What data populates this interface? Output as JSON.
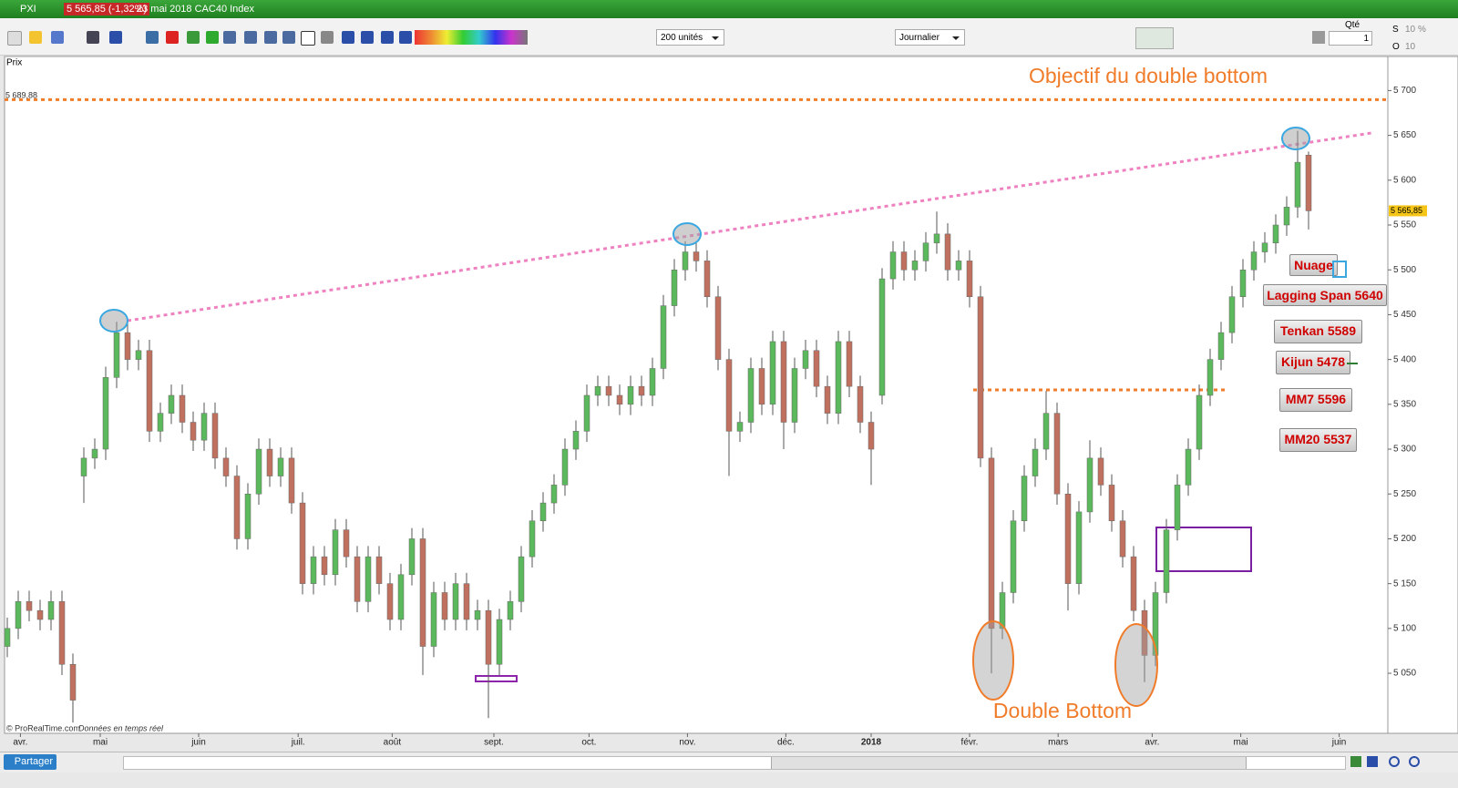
{
  "window": {
    "symbol": "PXI",
    "quote": "5 565,85 (-1,32%)",
    "description": "23 mai 2018 CAC40 Index"
  },
  "toolbar": {
    "units": "200 unités",
    "period": "Journalier",
    "qty_label": "Qté",
    "qty": "1",
    "s_label": "S",
    "s_value": "10",
    "percent": "%",
    "o_label": "O",
    "o_value": "10"
  },
  "panel_label": "Prix",
  "chart_data": {
    "type": "candlestick",
    "up_color": "#5cb85c",
    "down_color": "#c0705f",
    "xlim": [
      -0.25,
      126.25
    ],
    "ylim": [
      4983,
      5738
    ],
    "xticks": [
      {
        "value": 1.2,
        "label": "avr."
      },
      {
        "value": 8.5,
        "label": "mai"
      },
      {
        "value": 17.5,
        "label": "juin"
      },
      {
        "value": 26.6,
        "label": "juil."
      },
      {
        "value": 35.2,
        "label": "août"
      },
      {
        "value": 44.5,
        "label": "sept."
      },
      {
        "value": 53.2,
        "label": "oct."
      },
      {
        "value": 62.2,
        "label": "nov."
      },
      {
        "value": 71.2,
        "label": "déc."
      },
      {
        "value": 79,
        "label": "2018"
      },
      {
        "value": 88,
        "label": "févr."
      },
      {
        "value": 96.1,
        "label": "mars"
      },
      {
        "value": 104.7,
        "label": "avr."
      },
      {
        "value": 112.8,
        "label": "mai"
      },
      {
        "value": 121.8,
        "label": "juin"
      }
    ],
    "yticks": [
      {
        "value": 5050,
        "label": "5 050"
      },
      {
        "value": 5100,
        "label": "5 100"
      },
      {
        "value": 5150,
        "label": "5 150"
      },
      {
        "value": 5200,
        "label": "5 200"
      },
      {
        "value": 5250,
        "label": "5 250"
      },
      {
        "value": 5300,
        "label": "5 300"
      },
      {
        "value": 5350,
        "label": "5 350"
      },
      {
        "value": 5400,
        "label": "5 400"
      },
      {
        "value": 5450,
        "label": "5 450"
      },
      {
        "value": 5500,
        "label": "5 500"
      },
      {
        "value": 5550,
        "label": "5 550"
      },
      {
        "value": 5600,
        "label": "5 600"
      },
      {
        "value": 5650,
        "label": "5 650"
      },
      {
        "value": 5700,
        "label": "5 700"
      }
    ],
    "last_price": {
      "value": 5565.85,
      "label": "5 565,85"
    },
    "objective_level": {
      "value": 5689.88,
      "label": "5 689,88",
      "color": "#f07c2a"
    },
    "ohlc": [
      [
        5080,
        5112,
        5068,
        5100
      ],
      [
        5100,
        5142,
        5088,
        5130
      ],
      [
        5130,
        5142,
        5108,
        5120
      ],
      [
        5120,
        5132,
        5098,
        5110
      ],
      [
        5110,
        5142,
        5098,
        5130
      ],
      [
        5130,
        5142,
        5048,
        5060
      ],
      [
        5060,
        5072,
        4995,
        5020
      ],
      [
        5270,
        5302,
        5240,
        5290
      ],
      [
        5290,
        5312,
        5278,
        5300
      ],
      [
        5300,
        5392,
        5288,
        5380
      ],
      [
        5380,
        5442,
        5368,
        5430
      ],
      [
        5430,
        5442,
        5388,
        5400
      ],
      [
        5400,
        5422,
        5388,
        5410
      ],
      [
        5410,
        5422,
        5308,
        5320
      ],
      [
        5320,
        5352,
        5308,
        5340
      ],
      [
        5340,
        5372,
        5328,
        5360
      ],
      [
        5360,
        5372,
        5318,
        5330
      ],
      [
        5330,
        5342,
        5298,
        5310
      ],
      [
        5310,
        5352,
        5298,
        5340
      ],
      [
        5340,
        5352,
        5278,
        5290
      ],
      [
        5290,
        5302,
        5258,
        5270
      ],
      [
        5270,
        5282,
        5188,
        5200
      ],
      [
        5200,
        5262,
        5188,
        5250
      ],
      [
        5250,
        5312,
        5238,
        5300
      ],
      [
        5300,
        5312,
        5258,
        5270
      ],
      [
        5270,
        5302,
        5258,
        5290
      ],
      [
        5290,
        5302,
        5228,
        5240
      ],
      [
        5240,
        5252,
        5138,
        5150
      ],
      [
        5150,
        5192,
        5138,
        5180
      ],
      [
        5180,
        5192,
        5148,
        5160
      ],
      [
        5160,
        5222,
        5148,
        5210
      ],
      [
        5210,
        5222,
        5168,
        5180
      ],
      [
        5180,
        5192,
        5118,
        5130
      ],
      [
        5130,
        5192,
        5118,
        5180
      ],
      [
        5180,
        5192,
        5138,
        5150
      ],
      [
        5150,
        5162,
        5098,
        5110
      ],
      [
        5110,
        5172,
        5098,
        5160
      ],
      [
        5160,
        5212,
        5148,
        5200
      ],
      [
        5200,
        5212,
        5048,
        5080
      ],
      [
        5080,
        5152,
        5068,
        5140
      ],
      [
        5140,
        5152,
        5098,
        5110
      ],
      [
        5110,
        5162,
        5098,
        5150
      ],
      [
        5150,
        5162,
        5098,
        5110
      ],
      [
        5110,
        5132,
        5098,
        5120
      ],
      [
        5120,
        5132,
        5000,
        5060
      ],
      [
        5060,
        5122,
        5048,
        5110
      ],
      [
        5110,
        5142,
        5098,
        5130
      ],
      [
        5130,
        5192,
        5118,
        5180
      ],
      [
        5180,
        5232,
        5168,
        5220
      ],
      [
        5220,
        5252,
        5208,
        5240
      ],
      [
        5240,
        5272,
        5228,
        5260
      ],
      [
        5260,
        5312,
        5248,
        5300
      ],
      [
        5300,
        5332,
        5288,
        5320
      ],
      [
        5320,
        5372,
        5308,
        5360
      ],
      [
        5360,
        5382,
        5348,
        5370
      ],
      [
        5370,
        5382,
        5348,
        5360
      ],
      [
        5360,
        5372,
        5338,
        5350
      ],
      [
        5350,
        5382,
        5338,
        5370
      ],
      [
        5370,
        5382,
        5348,
        5360
      ],
      [
        5360,
        5402,
        5348,
        5390
      ],
      [
        5390,
        5472,
        5378,
        5460
      ],
      [
        5460,
        5512,
        5448,
        5500
      ],
      [
        5500,
        5532,
        5488,
        5520
      ],
      [
        5520,
        5532,
        5498,
        5510
      ],
      [
        5510,
        5522,
        5458,
        5470
      ],
      [
        5470,
        5482,
        5388,
        5400
      ],
      [
        5400,
        5412,
        5270,
        5320
      ],
      [
        5320,
        5342,
        5308,
        5330
      ],
      [
        5330,
        5402,
        5318,
        5390
      ],
      [
        5390,
        5402,
        5338,
        5350
      ],
      [
        5350,
        5432,
        5338,
        5420
      ],
      [
        5420,
        5432,
        5300,
        5330
      ],
      [
        5330,
        5402,
        5318,
        5390
      ],
      [
        5390,
        5422,
        5378,
        5410
      ],
      [
        5410,
        5422,
        5358,
        5370
      ],
      [
        5370,
        5382,
        5328,
        5340
      ],
      [
        5340,
        5432,
        5328,
        5420
      ],
      [
        5420,
        5432,
        5358,
        5370
      ],
      [
        5370,
        5382,
        5318,
        5330
      ],
      [
        5330,
        5342,
        5260,
        5300
      ],
      [
        5360,
        5502,
        5350,
        5490
      ],
      [
        5490,
        5532,
        5478,
        5520
      ],
      [
        5520,
        5532,
        5488,
        5500
      ],
      [
        5500,
        5522,
        5488,
        5510
      ],
      [
        5510,
        5542,
        5498,
        5530
      ],
      [
        5530,
        5565,
        5518,
        5540
      ],
      [
        5540,
        5552,
        5488,
        5500
      ],
      [
        5500,
        5522,
        5488,
        5510
      ],
      [
        5510,
        5522,
        5458,
        5470
      ],
      [
        5470,
        5482,
        5280,
        5290
      ],
      [
        5290,
        5302,
        5050,
        5100
      ],
      [
        5100,
        5152,
        5088,
        5140
      ],
      [
        5140,
        5232,
        5128,
        5220
      ],
      [
        5220,
        5282,
        5208,
        5270
      ],
      [
        5270,
        5312,
        5258,
        5300
      ],
      [
        5300,
        5365,
        5288,
        5340
      ],
      [
        5340,
        5352,
        5238,
        5250
      ],
      [
        5250,
        5262,
        5120,
        5150
      ],
      [
        5150,
        5242,
        5138,
        5230
      ],
      [
        5230,
        5310,
        5218,
        5290
      ],
      [
        5290,
        5302,
        5248,
        5260
      ],
      [
        5260,
        5272,
        5208,
        5220
      ],
      [
        5220,
        5232,
        5168,
        5180
      ],
      [
        5180,
        5192,
        5108,
        5120
      ],
      [
        5120,
        5132,
        5040,
        5070
      ],
      [
        5070,
        5152,
        5058,
        5140
      ],
      [
        5140,
        5222,
        5128,
        5210
      ],
      [
        5210,
        5272,
        5198,
        5260
      ],
      [
        5260,
        5312,
        5248,
        5300
      ],
      [
        5300,
        5372,
        5288,
        5360
      ],
      [
        5360,
        5412,
        5348,
        5400
      ],
      [
        5400,
        5442,
        5388,
        5430
      ],
      [
        5430,
        5482,
        5418,
        5470
      ],
      [
        5470,
        5512,
        5458,
        5500
      ],
      [
        5500,
        5532,
        5488,
        5520
      ],
      [
        5520,
        5542,
        5508,
        5530
      ],
      [
        5530,
        5562,
        5518,
        5550
      ],
      [
        5550,
        5582,
        5538,
        5570
      ],
      [
        5570,
        5655,
        5558,
        5620
      ],
      [
        5628,
        5632,
        5545,
        5565.85
      ]
    ],
    "annotations": [
      "Objectif du double bottom",
      "Double Bottom"
    ],
    "indicators": [
      "Nuage",
      "Lagging Span 5640",
      "Tenkan 5589",
      "Kijun 5478",
      "MM7 5596",
      "MM20 5537"
    ]
  },
  "footer": {
    "copyright": "© ProRealTime.com",
    "realtime": "Données en temps réel",
    "share": "Partager"
  }
}
